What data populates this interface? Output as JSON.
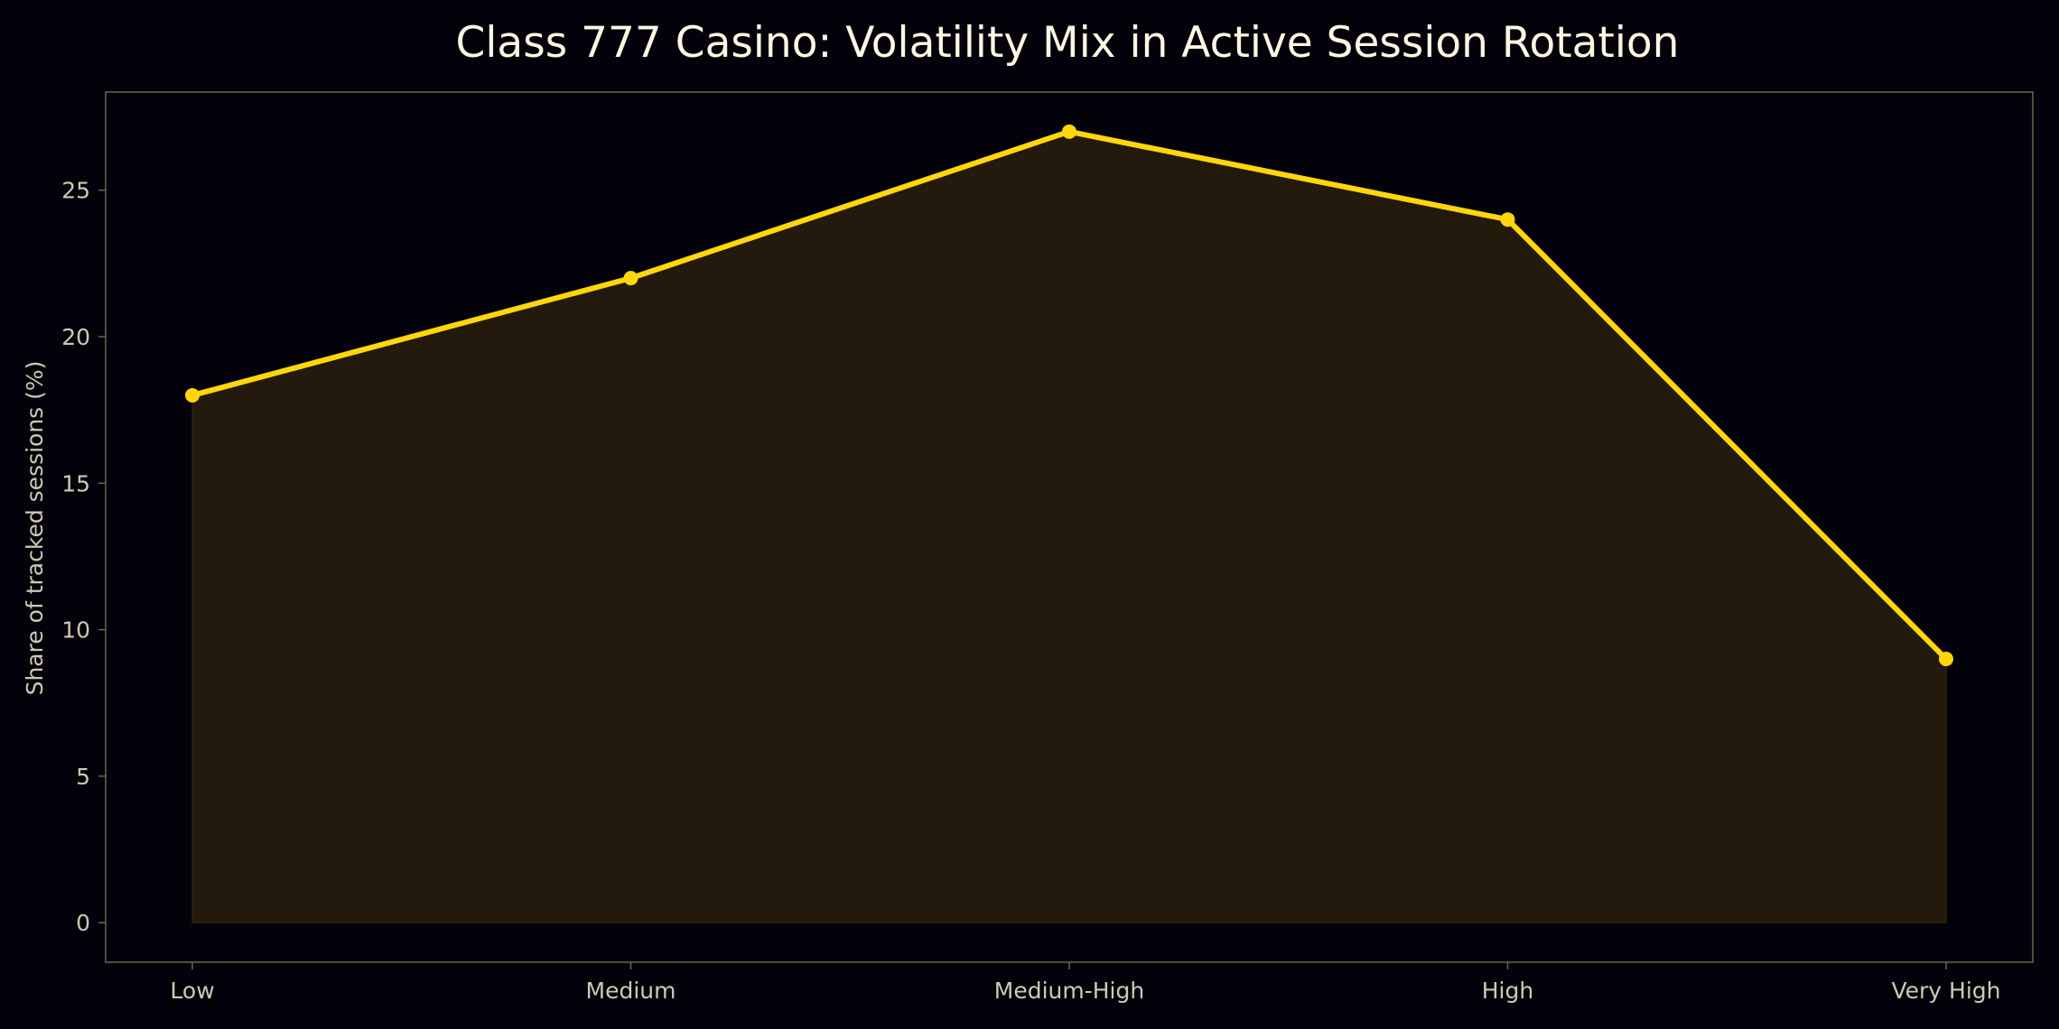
{
  "chart_data": {
    "type": "area",
    "title": "Class 777 Casino: Volatility Mix in Active Session Rotation",
    "xlabel": "",
    "ylabel": "Share of tracked sessions (%)",
    "categories": [
      "Low",
      "Medium",
      "Medium-High",
      "High",
      "Very High"
    ],
    "values": [
      18,
      22,
      27,
      24,
      9
    ],
    "ylim": [
      -1.35,
      28.35
    ],
    "yticks": [
      0,
      5,
      10,
      15,
      20,
      25
    ],
    "grid": false,
    "line_color": "#ffd60a",
    "fill_color": "#231a0d",
    "background_color": "#03020a",
    "frame_color": "#6b6450"
  }
}
